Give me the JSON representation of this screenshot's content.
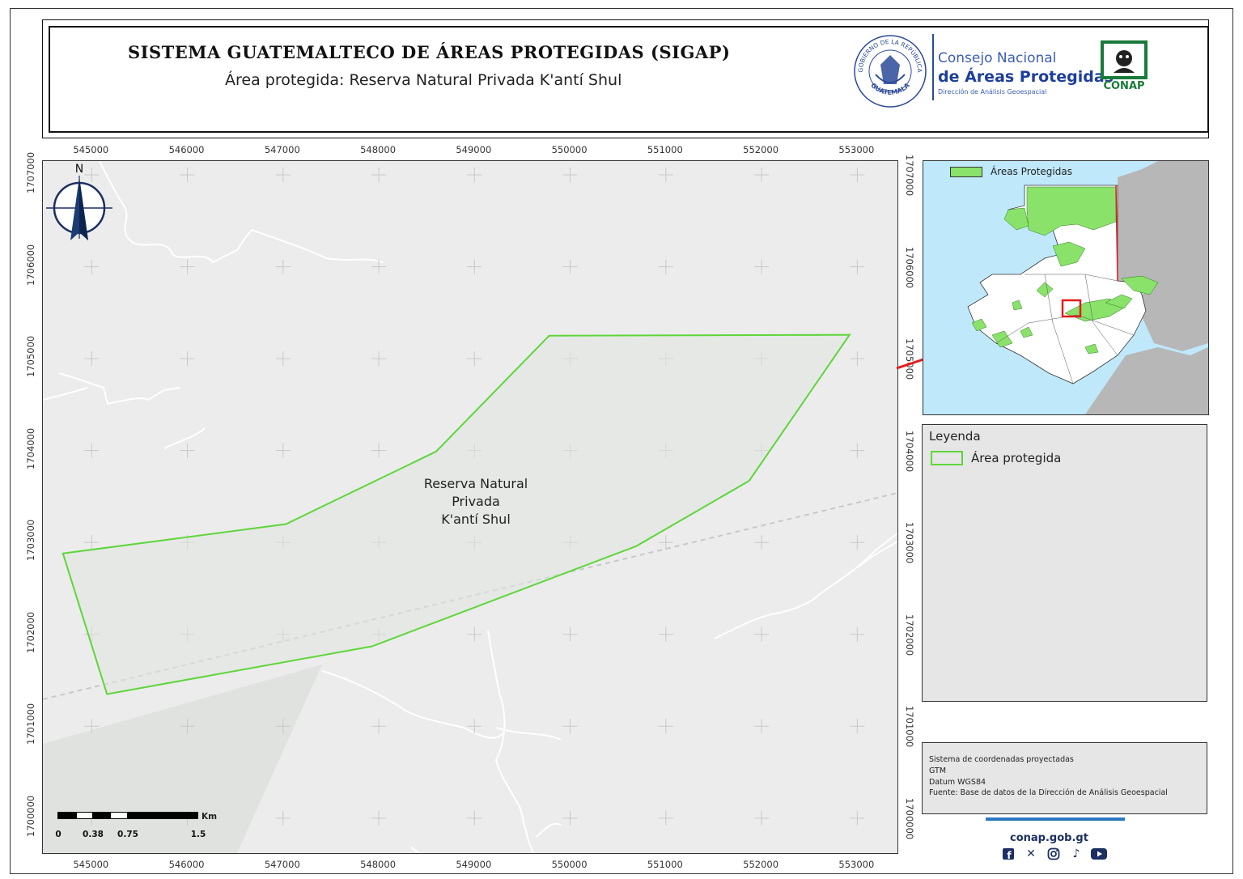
{
  "header": {
    "title": "SISTEMA GUATEMALTECO DE ÁREAS PROTEGIDAS (SIGAP)",
    "subtitle": "Área protegida: Reserva Natural Privada K'antí Shul",
    "seal_text_top": "GOBIERNO DE LA REPÚBLICA",
    "seal_text_bottom": "GUATEMALA",
    "logo_line1": "Consejo Nacional",
    "logo_line2": "de Áreas Protegidas",
    "logo_line3": "Dirección de Análisis Geoespacial",
    "conap_label": "CONAP"
  },
  "axes": {
    "x_ticks": [
      "545000",
      "546000",
      "547000",
      "548000",
      "549000",
      "550000",
      "551000",
      "552000",
      "553000"
    ],
    "y_ticks": [
      "1707000",
      "1706000",
      "1705000",
      "1704000",
      "1703000",
      "1702000",
      "1701000",
      "1700000"
    ]
  },
  "map": {
    "area_label_lines": [
      "Reserva Natural",
      "Privada",
      "K'antí Shul"
    ],
    "north_label": "N",
    "polygon_coords": [
      [
        544700,
        1702880
      ],
      [
        547030,
        1703200
      ],
      [
        548600,
        1703990
      ],
      [
        549780,
        1705250
      ],
      [
        552920,
        1705260
      ],
      [
        551870,
        1703670
      ],
      [
        550690,
        1702960
      ],
      [
        547930,
        1701870
      ],
      [
        545160,
        1701350
      ]
    ],
    "extent": {
      "xmin": 544490,
      "xmax": 553420,
      "ymin": 1699620,
      "ymax": 1707150
    },
    "colors": {
      "area_outline": "#5ed63a",
      "area_fill": "#e0e6e0",
      "background": "#ececec"
    }
  },
  "scale_bar": {
    "unit": "Km",
    "labels": [
      "0",
      "0.38",
      "0.75",
      "1.5"
    ]
  },
  "inset": {
    "legend_label": "Áreas Protegidas",
    "colors": {
      "water": "#bfe9fb",
      "land": "#ffffff",
      "neighbor": "#b7b7b7",
      "protected": "#8ae26b",
      "locator": "#e51b1b"
    }
  },
  "legend": {
    "title": "Leyenda",
    "item_label": "Área protegida"
  },
  "metadata": {
    "lines": [
      "Sistema de coordenadas proyectadas",
      "GTM",
      "Datum WGS84",
      "Fuente: Base de datos de la Dirección de Análisis Geoespacial"
    ]
  },
  "footer": {
    "website": "conap.gob.gt",
    "social_icons": [
      "facebook-icon",
      "x-icon",
      "instagram-icon",
      "tiktok-icon",
      "youtube-icon"
    ]
  }
}
